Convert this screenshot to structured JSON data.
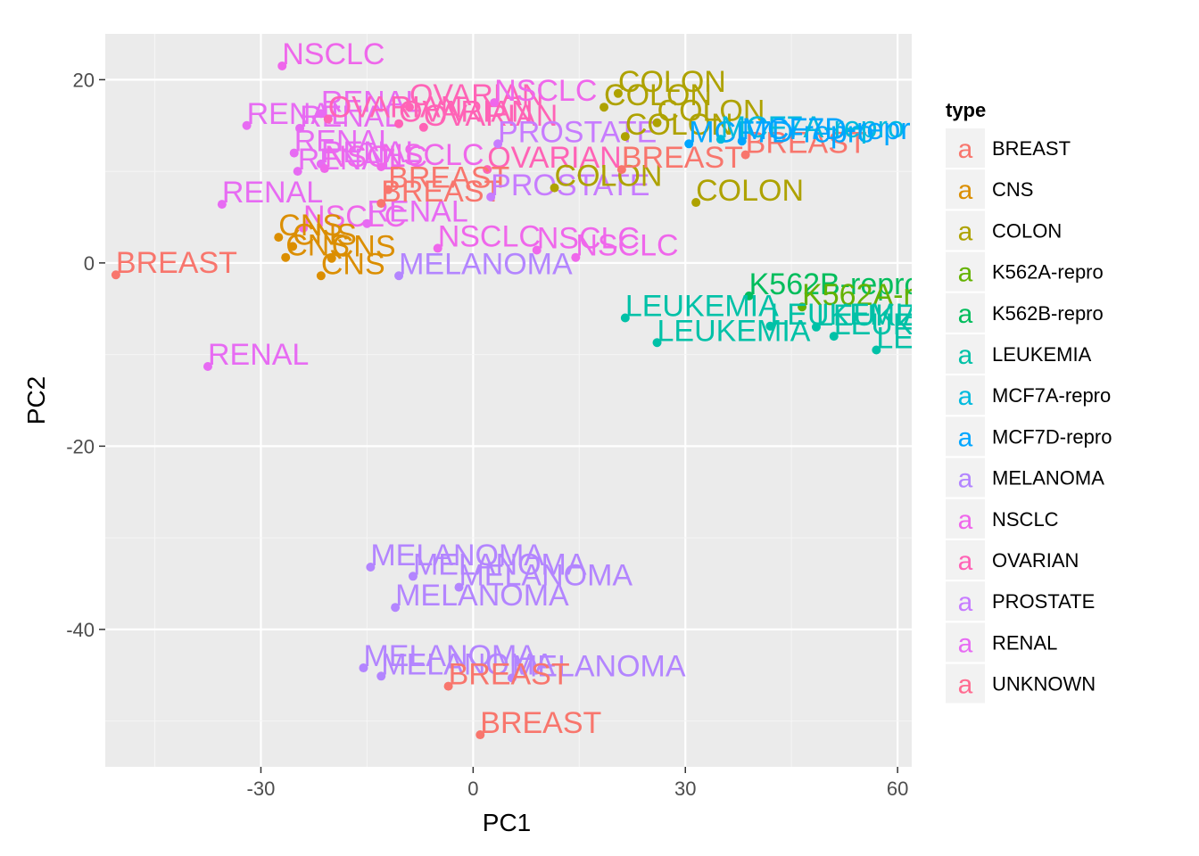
{
  "chart_data": {
    "type": "scatter",
    "xlabel": "PC1",
    "ylabel": "PC2",
    "xlim": [
      -52,
      62
    ],
    "ylim": [
      -55,
      25
    ],
    "x_ticks": [
      -30,
      0,
      30,
      60
    ],
    "y_ticks": [
      -40,
      -20,
      0,
      20
    ],
    "grid": true,
    "legend": {
      "title": "type",
      "position": "right",
      "key_glyph": "a",
      "entries": [
        {
          "name": "BREAST",
          "color": "#F8766D"
        },
        {
          "name": "CNS",
          "color": "#DB8E00"
        },
        {
          "name": "COLON",
          "color": "#AEA200"
        },
        {
          "name": "K562A-repro",
          "color": "#64B200"
        },
        {
          "name": "K562B-repro",
          "color": "#00BD5C"
        },
        {
          "name": "LEUKEMIA",
          "color": "#00C1A7"
        },
        {
          "name": "MCF7A-repro",
          "color": "#00BADE"
        },
        {
          "name": "MCF7D-repro",
          "color": "#00A6FF"
        },
        {
          "name": "MELANOMA",
          "color": "#B385FF"
        },
        {
          "name": "NSCLC",
          "color": "#EF67EB"
        },
        {
          "name": "OVARIAN",
          "color": "#FF63B6"
        },
        {
          "name": "PROSTATE",
          "color": "#C77CFF"
        },
        {
          "name": "RENAL",
          "color": "#E76BF3"
        },
        {
          "name": "UNKNOWN",
          "color": "#FF6C91"
        }
      ]
    },
    "points": [
      {
        "x": -27,
        "y": 21.5,
        "label": "NSCLC"
      },
      {
        "x": -50.5,
        "y": -1.3,
        "label": "BREAST"
      },
      {
        "x": -37.5,
        "y": -11.3,
        "label": "RENAL"
      },
      {
        "x": -35.5,
        "y": 6.4,
        "label": "RENAL"
      },
      {
        "x": -32,
        "y": 15,
        "label": "RENAL"
      },
      {
        "x": -24.5,
        "y": 14.7,
        "label": "RENAL"
      },
      {
        "x": -21.5,
        "y": 16.3,
        "label": "RENAL"
      },
      {
        "x": -25.3,
        "y": 12.0,
        "label": "RENAL"
      },
      {
        "x": -24.8,
        "y": 10.0,
        "label": "RENAL"
      },
      {
        "x": -21.5,
        "y": 10.8,
        "label": "RENAL"
      },
      {
        "x": -20.5,
        "y": 15.7,
        "label": "OVARIAN"
      },
      {
        "x": -10.5,
        "y": 15.2,
        "label": "OVARIAN"
      },
      {
        "x": -7,
        "y": 14.8,
        "label": "OVARIAN"
      },
      {
        "x": -9,
        "y": 17.0,
        "label": "OVARIAN"
      },
      {
        "x": 2,
        "y": 10.2,
        "label": "OVARIAN"
      },
      {
        "x": -13,
        "y": 10.5,
        "label": "NSCLC"
      },
      {
        "x": -21,
        "y": 10.3,
        "label": "NSCLC"
      },
      {
        "x": 3,
        "y": 17.5,
        "label": "NSCLC"
      },
      {
        "x": -24,
        "y": 3.8,
        "label": "NSCLC"
      },
      {
        "x": -5,
        "y": 1.6,
        "label": "NSCLC"
      },
      {
        "x": 9,
        "y": 1.4,
        "label": "NSCLC"
      },
      {
        "x": 14.5,
        "y": 0.6,
        "label": "NSCLC"
      },
      {
        "x": -15,
        "y": 4.3,
        "label": "RENAL"
      },
      {
        "x": -12,
        "y": 8.0,
        "label": "BREAST"
      },
      {
        "x": -13,
        "y": 6.5,
        "label": "BREAST"
      },
      {
        "x": 2.5,
        "y": 7.2,
        "label": "PROSTATE"
      },
      {
        "x": 3.5,
        "y": 13.0,
        "label": "PROSTATE"
      },
      {
        "x": -27.5,
        "y": 2.8,
        "label": "CNS"
      },
      {
        "x": -26.5,
        "y": 0.6,
        "label": "CNS"
      },
      {
        "x": -25.5,
        "y": 1.8,
        "label": "CNS"
      },
      {
        "x": -20,
        "y": 0.5,
        "label": "CNS"
      },
      {
        "x": -21.5,
        "y": -1.4,
        "label": "CNS"
      },
      {
        "x": -10.5,
        "y": -1.4,
        "label": "MELANOMA"
      },
      {
        "x": 18.5,
        "y": 17.0,
        "label": "COLON"
      },
      {
        "x": 20.5,
        "y": 18.5,
        "label": "COLON"
      },
      {
        "x": 26,
        "y": 15.3,
        "label": "COLON"
      },
      {
        "x": 21.5,
        "y": 13.8,
        "label": "COLON"
      },
      {
        "x": 11.5,
        "y": 8.2,
        "label": "COLON"
      },
      {
        "x": 31.5,
        "y": 6.6,
        "label": "COLON"
      },
      {
        "x": 21,
        "y": 10.2,
        "label": "BREAST"
      },
      {
        "x": 38.5,
        "y": 11.8,
        "label": "BREAST"
      },
      {
        "x": 30.5,
        "y": 13.0,
        "label": "MCF7D-repro"
      },
      {
        "x": 35,
        "y": 13.5,
        "label": "MCF7A-repro"
      },
      {
        "x": 38,
        "y": 13.3,
        "label": "MCF7D-repro"
      },
      {
        "x": 39,
        "y": -3.6,
        "label": "K562B-repro"
      },
      {
        "x": 46.5,
        "y": -4.8,
        "label": "K562A-repro"
      },
      {
        "x": 21.5,
        "y": -6.0,
        "label": "LEUKEMIA"
      },
      {
        "x": 26,
        "y": -8.7,
        "label": "LEUKEMIA"
      },
      {
        "x": 42,
        "y": -6.9,
        "label": "LEUKEMIA"
      },
      {
        "x": 48.5,
        "y": -7.0,
        "label": "LEUKEMIA"
      },
      {
        "x": 51,
        "y": -8.0,
        "label": "LEUKEMIA"
      },
      {
        "x": 57,
        "y": -9.5,
        "label": "LEUKEMIA"
      },
      {
        "x": -14.5,
        "y": -33.2,
        "label": "MELANOMA"
      },
      {
        "x": -8.5,
        "y": -34.2,
        "label": "MELANOMA"
      },
      {
        "x": -2,
        "y": -35.4,
        "label": "MELANOMA"
      },
      {
        "x": -11,
        "y": -37.6,
        "label": "MELANOMA"
      },
      {
        "x": -15.5,
        "y": -44.2,
        "label": "MELANOMA"
      },
      {
        "x": -13,
        "y": -45.1,
        "label": "MELANOMA"
      },
      {
        "x": 5.5,
        "y": -45.3,
        "label": "MELANOMA"
      },
      {
        "x": -3.5,
        "y": -46.2,
        "label": "BREAST"
      },
      {
        "x": 1,
        "y": -51.5,
        "label": "BREAST"
      }
    ]
  }
}
